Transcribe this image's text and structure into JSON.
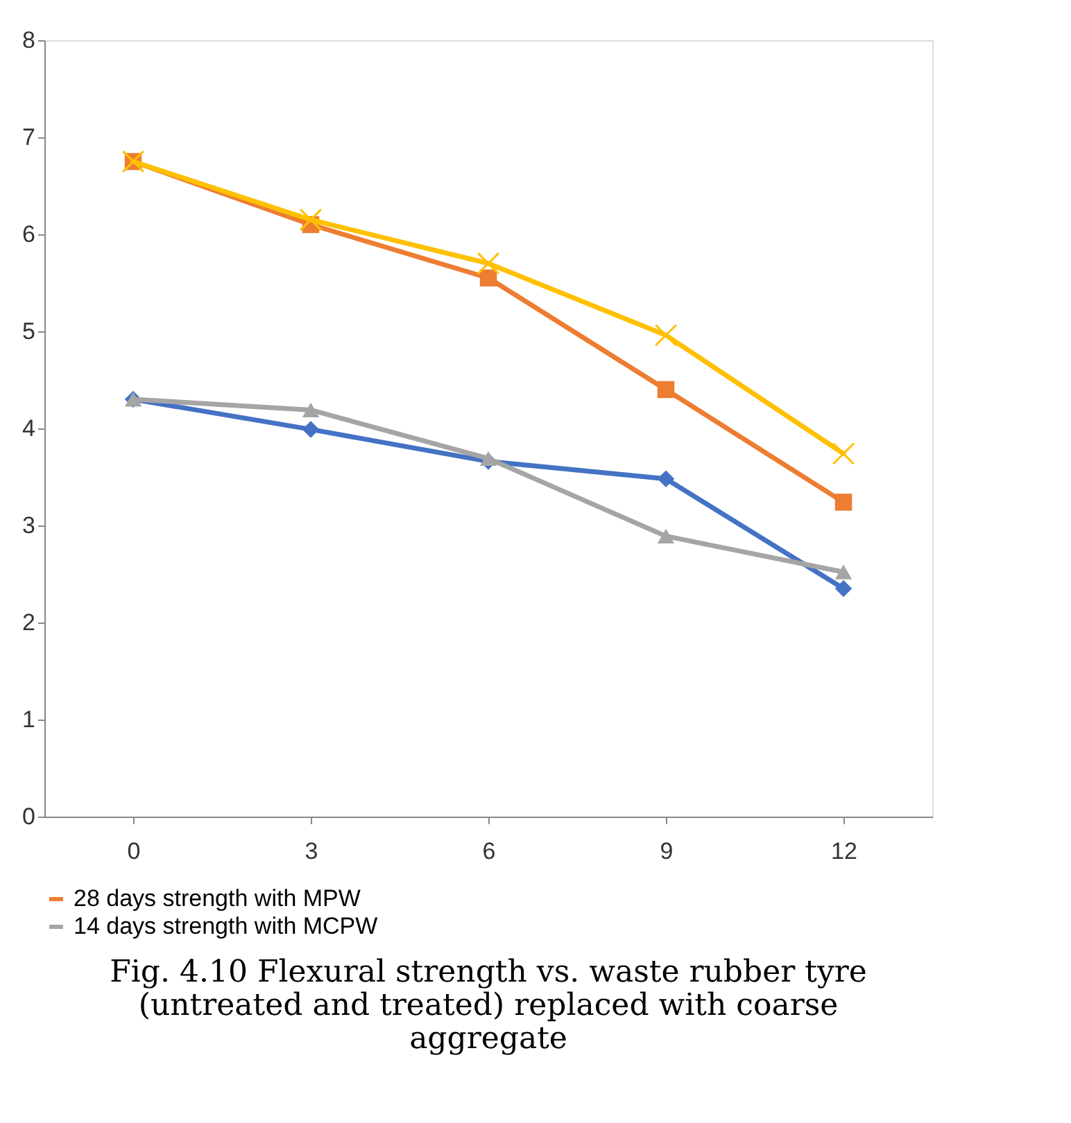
{
  "chart_data": {
    "type": "line",
    "categories": [
      "0",
      "3",
      "6",
      "9",
      "12"
    ],
    "series": [
      {
        "color": "#4472c4",
        "marker": "diamond",
        "values": [
          4.3,
          3.99,
          3.66,
          3.48,
          2.35
        ]
      },
      {
        "name": "28 days strength with MPW",
        "color": "#ed7d31",
        "marker": "square",
        "values": [
          6.75,
          6.1,
          5.55,
          4.4,
          3.24
        ]
      },
      {
        "name": "14 days strength with MCPW",
        "color": "#a5a5a5",
        "marker": "triangle",
        "values": [
          4.3,
          4.19,
          3.69,
          2.89,
          2.52
        ]
      },
      {
        "color": "#ffc000",
        "marker": "cross",
        "values": [
          6.75,
          6.15,
          5.7,
          4.96,
          3.74
        ]
      }
    ],
    "ylim": [
      0,
      8
    ],
    "yticks": [
      0,
      1,
      2,
      3,
      4,
      5,
      6,
      7,
      8
    ],
    "grid": false,
    "legend": "bottom",
    "annotations": [
      "Fig. 4.10 Flexural strength vs. waste rubber tyre (untreated and treated) replaced with coarse aggregate"
    ]
  }
}
